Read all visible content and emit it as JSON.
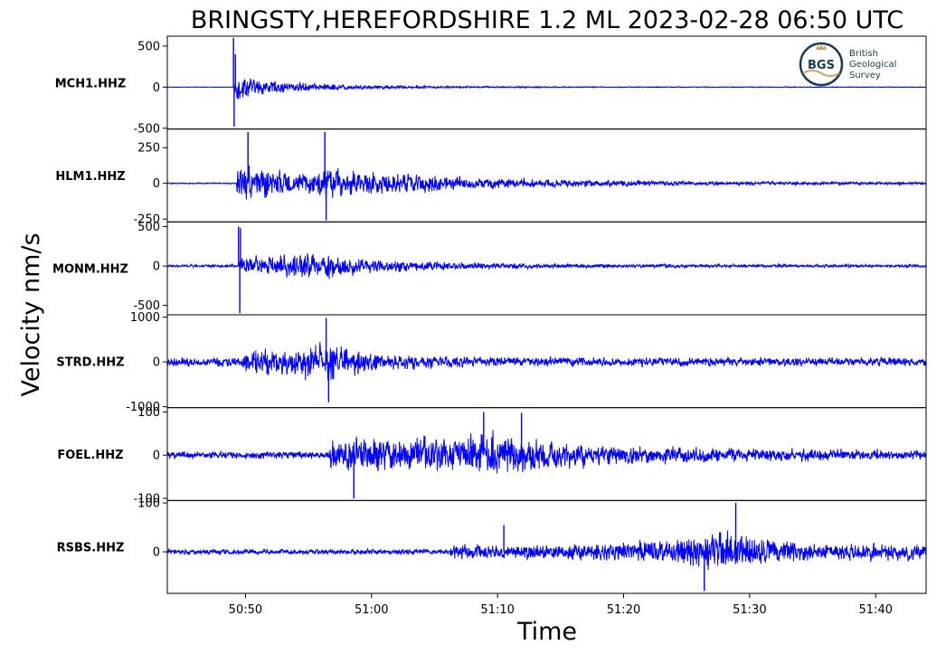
{
  "chart_data": {
    "type": "line",
    "title": "BRINGSTY,HEREFORDSHIRE 1.2 ML   2023-02-28 06:50 UTC",
    "xlabel": "Time",
    "ylabel": "Velocity nm/s",
    "x_ticks": [
      "50:50",
      "51:00",
      "51:10",
      "51:20",
      "51:30",
      "51:40"
    ],
    "x_tick_seconds": [
      50,
      60,
      70,
      80,
      90,
      100
    ],
    "x_range_seconds": [
      43.8,
      104
    ],
    "series_color": "#0000ff",
    "logo": {
      "badge": "BGS",
      "lines": [
        "British",
        "Geological",
        "Survey"
      ]
    },
    "panels": [
      {
        "name": "MCH1.HHZ",
        "ylim": [
          -510,
          620
        ],
        "yticks": [
          500,
          0,
          -500
        ],
        "ytick_labels": [
          "500",
          "0",
          "-500"
        ],
        "onset_seconds": 49.1,
        "peak_amplitude": 580,
        "pre_noise": 5,
        "envelope": [
          [
            49.1,
            300
          ],
          [
            50.5,
            200
          ],
          [
            52,
            130
          ],
          [
            55,
            80
          ],
          [
            60,
            40
          ],
          [
            68,
            18
          ],
          [
            80,
            10
          ],
          [
            104,
            8
          ]
        ],
        "spikes": [
          [
            49.05,
            600
          ],
          [
            49.1,
            -480
          ],
          [
            49.2,
            400
          ]
        ]
      },
      {
        "name": "HLM1.HHZ",
        "ylim": [
          -270,
          380
        ],
        "yticks": [
          250,
          0,
          -250
        ],
        "ytick_labels": [
          "250",
          "0",
          "-250"
        ],
        "onset_seconds": 49.3,
        "peak_amplitude": 360,
        "pre_noise": 8,
        "envelope": [
          [
            49.3,
            150
          ],
          [
            50.3,
            200
          ],
          [
            52,
            150
          ],
          [
            55,
            110
          ],
          [
            56.4,
            220
          ],
          [
            58,
            160
          ],
          [
            62,
            120
          ],
          [
            68,
            70
          ],
          [
            75,
            45
          ],
          [
            85,
            25
          ],
          [
            104,
            15
          ]
        ],
        "spikes": [
          [
            50.2,
            360
          ],
          [
            56.3,
            360
          ],
          [
            56.4,
            -260
          ]
        ]
      },
      {
        "name": "MONM.HHZ",
        "ylim": [
          -620,
          560
        ],
        "yticks": [
          500,
          0,
          -500
        ],
        "ytick_labels": [
          "500",
          "0",
          "-500"
        ],
        "onset_seconds": 49.5,
        "peak_amplitude": 520,
        "pre_noise": 30,
        "envelope": [
          [
            49.5,
            150
          ],
          [
            51,
            200
          ],
          [
            53,
            250
          ],
          [
            55,
            280
          ],
          [
            57,
            260
          ],
          [
            60,
            150
          ],
          [
            65,
            90
          ],
          [
            72,
            50
          ],
          [
            85,
            35
          ],
          [
            104,
            30
          ]
        ],
        "spikes": [
          [
            49.45,
            500
          ],
          [
            49.55,
            -600
          ],
          [
            49.6,
            480
          ]
        ]
      },
      {
        "name": "STRD.HHZ",
        "ylim": [
          -1020,
          1050
        ],
        "yticks": [
          1000,
          0,
          -1000
        ],
        "ytick_labels": [
          "1000",
          "0",
          "-1000"
        ],
        "onset_seconds": 49.7,
        "peak_amplitude": 980,
        "pre_noise": 180,
        "envelope": [
          [
            49.7,
            400
          ],
          [
            51,
            550
          ],
          [
            53,
            450
          ],
          [
            55,
            650
          ],
          [
            56.5,
            800
          ],
          [
            58,
            500
          ],
          [
            61,
            300
          ],
          [
            66,
            220
          ],
          [
            75,
            170
          ],
          [
            85,
            160
          ],
          [
            104,
            150
          ]
        ],
        "spikes": [
          [
            56.4,
            980
          ],
          [
            56.6,
            -900
          ]
        ]
      },
      {
        "name": "FOEL.HHZ",
        "ylim": [
          -105,
          110
        ],
        "yticks": [
          100,
          0,
          -100
        ],
        "ytick_labels": [
          "100",
          "0",
          "-100"
        ],
        "onset_seconds": 56.7,
        "peak_amplitude": 100,
        "pre_noise": 14,
        "envelope": [
          [
            56.7,
            55
          ],
          [
            59,
            65
          ],
          [
            62,
            60
          ],
          [
            66,
            70
          ],
          [
            70,
            80
          ],
          [
            73,
            65
          ],
          [
            76,
            45
          ],
          [
            82,
            35
          ],
          [
            90,
            25
          ],
          [
            104,
            18
          ]
        ],
        "spikes": [
          [
            58.6,
            -100
          ],
          [
            68.9,
            100
          ],
          [
            71.9,
            98
          ]
        ]
      },
      {
        "name": "RSBS.HHZ",
        "ylim": [
          -85,
          105
        ],
        "yticks": [
          100,
          0
        ],
        "ytick_labels": [
          "100",
          "0"
        ],
        "onset_seconds": 66.2,
        "peak_amplitude": 100,
        "pre_noise": 9,
        "envelope": [
          [
            66.2,
            25
          ],
          [
            70,
            30
          ],
          [
            75,
            25
          ],
          [
            80,
            30
          ],
          [
            84,
            45
          ],
          [
            87,
            65
          ],
          [
            90,
            55
          ],
          [
            94,
            35
          ],
          [
            98,
            30
          ],
          [
            104,
            25
          ]
        ],
        "spikes": [
          [
            88.9,
            100
          ],
          [
            86.4,
            -80
          ],
          [
            70.5,
            55
          ]
        ]
      }
    ]
  }
}
